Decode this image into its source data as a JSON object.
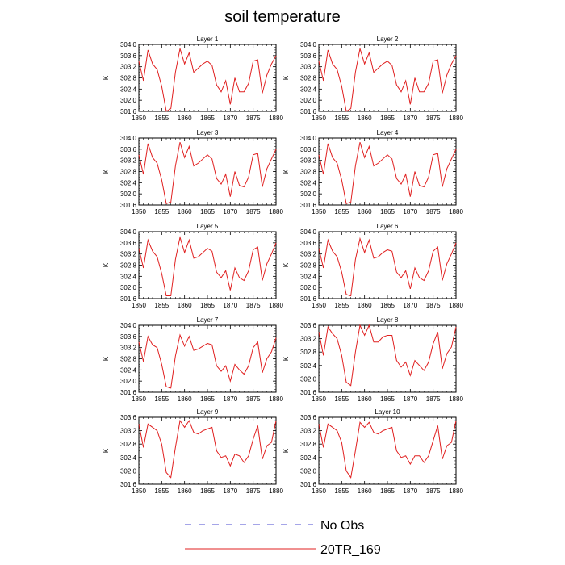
{
  "title": "soil temperature",
  "legend": [
    {
      "label": "No Obs",
      "color": "#4b4bd0",
      "dash": true
    },
    {
      "label": "20TR_169",
      "color": "#e02020",
      "dash": false
    }
  ],
  "chart_data": [
    {
      "type": "line",
      "title": "Layer 1",
      "ylabel": "K",
      "x": [
        1850,
        1851,
        1852,
        1853,
        1854,
        1855,
        1856,
        1857,
        1858,
        1859,
        1860,
        1861,
        1862,
        1863,
        1864,
        1865,
        1866,
        1867,
        1868,
        1869,
        1870,
        1871,
        1872,
        1873,
        1874,
        1875,
        1876,
        1877,
        1878,
        1879,
        1880
      ],
      "xlim": [
        1850,
        1880
      ],
      "xticks": [
        "1850",
        "1855",
        "1860",
        "1865",
        "1870",
        "1875",
        "1880"
      ],
      "ylim": [
        301.6,
        304.0
      ],
      "yticks": [
        "301.6",
        "302.0",
        "302.4",
        "302.8",
        "303.2",
        "303.6",
        "304.0"
      ],
      "series": [
        {
          "color": "#e02020",
          "values": [
            303.4,
            302.7,
            303.8,
            303.3,
            303.1,
            302.5,
            301.6,
            301.7,
            303.0,
            303.85,
            303.3,
            303.7,
            303.0,
            303.15,
            303.3,
            303.4,
            303.25,
            302.55,
            302.3,
            302.7,
            301.85,
            302.8,
            302.3,
            302.3,
            302.6,
            303.4,
            303.45,
            302.25,
            302.9,
            303.3,
            303.6
          ]
        }
      ]
    },
    {
      "type": "line",
      "title": "Layer 2",
      "ylabel": "K",
      "x": [
        1850,
        1851,
        1852,
        1853,
        1854,
        1855,
        1856,
        1857,
        1858,
        1859,
        1860,
        1861,
        1862,
        1863,
        1864,
        1865,
        1866,
        1867,
        1868,
        1869,
        1870,
        1871,
        1872,
        1873,
        1874,
        1875,
        1876,
        1877,
        1878,
        1879,
        1880
      ],
      "xlim": [
        1850,
        1880
      ],
      "xticks": [
        "1850",
        "1855",
        "1860",
        "1865",
        "1870",
        "1875",
        "1880"
      ],
      "ylim": [
        301.6,
        304.0
      ],
      "yticks": [
        "301.6",
        "302.0",
        "302.4",
        "302.8",
        "303.2",
        "303.6",
        "304.0"
      ],
      "series": [
        {
          "color": "#e02020",
          "values": [
            303.4,
            302.7,
            303.8,
            303.3,
            303.1,
            302.5,
            301.6,
            301.7,
            303.0,
            303.85,
            303.3,
            303.7,
            303.0,
            303.15,
            303.3,
            303.4,
            303.25,
            302.55,
            302.3,
            302.7,
            301.85,
            302.8,
            302.3,
            302.3,
            302.6,
            303.4,
            303.45,
            302.25,
            302.9,
            303.3,
            303.6
          ]
        }
      ]
    },
    {
      "type": "line",
      "title": "Layer 3",
      "ylabel": "K",
      "x": [
        1850,
        1851,
        1852,
        1853,
        1854,
        1855,
        1856,
        1857,
        1858,
        1859,
        1860,
        1861,
        1862,
        1863,
        1864,
        1865,
        1866,
        1867,
        1868,
        1869,
        1870,
        1871,
        1872,
        1873,
        1874,
        1875,
        1876,
        1877,
        1878,
        1879,
        1880
      ],
      "xlim": [
        1850,
        1880
      ],
      "xticks": [
        "1850",
        "1855",
        "1860",
        "1865",
        "1870",
        "1875",
        "1880"
      ],
      "ylim": [
        301.6,
        304.0
      ],
      "yticks": [
        "301.6",
        "302.0",
        "302.4",
        "302.8",
        "303.2",
        "303.6",
        "304.0"
      ],
      "series": [
        {
          "color": "#e02020",
          "values": [
            303.4,
            302.7,
            303.8,
            303.3,
            303.1,
            302.5,
            301.65,
            301.7,
            303.0,
            303.85,
            303.3,
            303.7,
            303.0,
            303.1,
            303.25,
            303.4,
            303.25,
            302.55,
            302.35,
            302.7,
            301.9,
            302.8,
            302.3,
            302.25,
            302.6,
            303.4,
            303.45,
            302.25,
            302.9,
            303.25,
            303.6
          ]
        }
      ]
    },
    {
      "type": "line",
      "title": "Layer 4",
      "ylabel": "K",
      "x": [
        1850,
        1851,
        1852,
        1853,
        1854,
        1855,
        1856,
        1857,
        1858,
        1859,
        1860,
        1861,
        1862,
        1863,
        1864,
        1865,
        1866,
        1867,
        1868,
        1869,
        1870,
        1871,
        1872,
        1873,
        1874,
        1875,
        1876,
        1877,
        1878,
        1879,
        1880
      ],
      "xlim": [
        1850,
        1880
      ],
      "xticks": [
        "1850",
        "1855",
        "1860",
        "1865",
        "1870",
        "1875",
        "1880"
      ],
      "ylim": [
        301.6,
        304.0
      ],
      "yticks": [
        "301.6",
        "302.0",
        "302.4",
        "302.8",
        "303.2",
        "303.6",
        "304.0"
      ],
      "series": [
        {
          "color": "#e02020",
          "values": [
            303.4,
            302.7,
            303.8,
            303.3,
            303.1,
            302.5,
            301.65,
            301.7,
            303.0,
            303.85,
            303.3,
            303.7,
            303.0,
            303.1,
            303.25,
            303.4,
            303.25,
            302.55,
            302.35,
            302.7,
            301.9,
            302.8,
            302.3,
            302.25,
            302.6,
            303.4,
            303.45,
            302.25,
            302.9,
            303.25,
            303.6
          ]
        }
      ]
    },
    {
      "type": "line",
      "title": "Layer 5",
      "ylabel": "K",
      "x": [
        1850,
        1851,
        1852,
        1853,
        1854,
        1855,
        1856,
        1857,
        1858,
        1859,
        1860,
        1861,
        1862,
        1863,
        1864,
        1865,
        1866,
        1867,
        1868,
        1869,
        1870,
        1871,
        1872,
        1873,
        1874,
        1875,
        1876,
        1877,
        1878,
        1879,
        1880
      ],
      "xlim": [
        1850,
        1880
      ],
      "xticks": [
        "1850",
        "1855",
        "1860",
        "1865",
        "1870",
        "1875",
        "1880"
      ],
      "ylim": [
        301.6,
        304.0
      ],
      "yticks": [
        "301.6",
        "302.0",
        "302.4",
        "302.8",
        "303.2",
        "303.6",
        "304.0"
      ],
      "series": [
        {
          "color": "#e02020",
          "values": [
            303.4,
            302.7,
            303.7,
            303.3,
            303.1,
            302.5,
            301.7,
            301.7,
            303.0,
            303.8,
            303.25,
            303.7,
            303.05,
            303.1,
            303.25,
            303.4,
            303.3,
            302.55,
            302.35,
            302.6,
            301.9,
            302.7,
            302.35,
            302.25,
            302.6,
            303.35,
            303.45,
            302.25,
            302.85,
            303.2,
            303.6
          ]
        }
      ]
    },
    {
      "type": "line",
      "title": "Layer 6",
      "ylabel": "K",
      "x": [
        1850,
        1851,
        1852,
        1853,
        1854,
        1855,
        1856,
        1857,
        1858,
        1859,
        1860,
        1861,
        1862,
        1863,
        1864,
        1865,
        1866,
        1867,
        1868,
        1869,
        1870,
        1871,
        1872,
        1873,
        1874,
        1875,
        1876,
        1877,
        1878,
        1879,
        1880
      ],
      "xlim": [
        1850,
        1880
      ],
      "xticks": [
        "1850",
        "1855",
        "1860",
        "1865",
        "1870",
        "1875",
        "1880"
      ],
      "ylim": [
        301.6,
        304.0
      ],
      "yticks": [
        "301.6",
        "302.0",
        "302.4",
        "302.8",
        "303.2",
        "303.6",
        "304.0"
      ],
      "series": [
        {
          "color": "#e02020",
          "values": [
            303.4,
            302.7,
            303.7,
            303.3,
            303.1,
            302.55,
            301.75,
            301.7,
            303.0,
            303.75,
            303.25,
            303.7,
            303.05,
            303.1,
            303.25,
            303.35,
            303.3,
            302.55,
            302.35,
            302.6,
            301.95,
            302.7,
            302.35,
            302.25,
            302.6,
            303.3,
            303.45,
            302.25,
            302.85,
            303.2,
            303.6
          ]
        }
      ]
    },
    {
      "type": "line",
      "title": "Layer 7",
      "ylabel": "K",
      "x": [
        1850,
        1851,
        1852,
        1853,
        1854,
        1855,
        1856,
        1857,
        1858,
        1859,
        1860,
        1861,
        1862,
        1863,
        1864,
        1865,
        1866,
        1867,
        1868,
        1869,
        1870,
        1871,
        1872,
        1873,
        1874,
        1875,
        1876,
        1877,
        1878,
        1879,
        1880
      ],
      "xlim": [
        1850,
        1880
      ],
      "xticks": [
        "1850",
        "1855",
        "1860",
        "1865",
        "1870",
        "1875",
        "1880"
      ],
      "ylim": [
        301.6,
        304.0
      ],
      "yticks": [
        "301.6",
        "302.0",
        "302.4",
        "302.8",
        "303.2",
        "303.6",
        "304.0"
      ],
      "series": [
        {
          "color": "#e02020",
          "values": [
            303.4,
            302.7,
            303.6,
            303.3,
            303.2,
            302.6,
            301.8,
            301.75,
            302.9,
            303.65,
            303.25,
            303.6,
            303.1,
            303.15,
            303.25,
            303.35,
            303.3,
            302.55,
            302.35,
            302.55,
            302.0,
            302.6,
            302.4,
            302.25,
            302.55,
            303.2,
            303.4,
            302.3,
            302.8,
            303.05,
            303.55
          ]
        }
      ]
    },
    {
      "type": "line",
      "title": "Layer 8",
      "ylabel": "K",
      "x": [
        1850,
        1851,
        1852,
        1853,
        1854,
        1855,
        1856,
        1857,
        1858,
        1859,
        1860,
        1861,
        1862,
        1863,
        1864,
        1865,
        1866,
        1867,
        1868,
        1869,
        1870,
        1871,
        1872,
        1873,
        1874,
        1875,
        1876,
        1877,
        1878,
        1879,
        1880
      ],
      "xlim": [
        1850,
        1880
      ],
      "xticks": [
        "1850",
        "1855",
        "1860",
        "1865",
        "1870",
        "1875",
        "1880"
      ],
      "ylim": [
        301.6,
        303.6
      ],
      "yticks": [
        "301.6",
        "302.0",
        "302.4",
        "302.8",
        "303.2",
        "303.6"
      ],
      "series": [
        {
          "color": "#e02020",
          "values": [
            303.4,
            302.7,
            303.55,
            303.35,
            303.2,
            302.7,
            301.9,
            301.8,
            302.8,
            303.6,
            303.3,
            303.6,
            303.1,
            303.1,
            303.25,
            303.3,
            303.3,
            302.55,
            302.35,
            302.5,
            302.1,
            302.55,
            302.4,
            302.25,
            302.5,
            303.05,
            303.4,
            302.3,
            302.75,
            302.95,
            303.55
          ]
        }
      ]
    },
    {
      "type": "line",
      "title": "Layer 9",
      "ylabel": "K",
      "x": [
        1850,
        1851,
        1852,
        1853,
        1854,
        1855,
        1856,
        1857,
        1858,
        1859,
        1860,
        1861,
        1862,
        1863,
        1864,
        1865,
        1866,
        1867,
        1868,
        1869,
        1870,
        1871,
        1872,
        1873,
        1874,
        1875,
        1876,
        1877,
        1878,
        1879,
        1880
      ],
      "xlim": [
        1850,
        1880
      ],
      "xticks": [
        "1850",
        "1855",
        "1860",
        "1865",
        "1870",
        "1875",
        "1880"
      ],
      "ylim": [
        301.6,
        303.6
      ],
      "yticks": [
        "301.6",
        "302.0",
        "302.4",
        "302.8",
        "303.2",
        "303.6"
      ],
      "series": [
        {
          "color": "#e02020",
          "values": [
            303.4,
            302.7,
            303.4,
            303.3,
            303.2,
            302.8,
            301.95,
            301.8,
            302.7,
            303.5,
            303.3,
            303.5,
            303.15,
            303.1,
            303.2,
            303.25,
            303.3,
            302.6,
            302.4,
            302.45,
            302.15,
            302.5,
            302.45,
            302.25,
            302.45,
            302.95,
            303.35,
            302.35,
            302.75,
            302.85,
            303.5
          ]
        }
      ]
    },
    {
      "type": "line",
      "title": "Layer 10",
      "ylabel": "K",
      "x": [
        1850,
        1851,
        1852,
        1853,
        1854,
        1855,
        1856,
        1857,
        1858,
        1859,
        1860,
        1861,
        1862,
        1863,
        1864,
        1865,
        1866,
        1867,
        1868,
        1869,
        1870,
        1871,
        1872,
        1873,
        1874,
        1875,
        1876,
        1877,
        1878,
        1879,
        1880
      ],
      "xlim": [
        1850,
        1880
      ],
      "xticks": [
        "1850",
        "1855",
        "1860",
        "1865",
        "1870",
        "1875",
        "1880"
      ],
      "ylim": [
        301.6,
        303.6
      ],
      "yticks": [
        "301.6",
        "302.0",
        "302.4",
        "302.8",
        "303.2",
        "303.6"
      ],
      "series": [
        {
          "color": "#e02020",
          "values": [
            303.4,
            302.7,
            303.4,
            303.3,
            303.2,
            302.85,
            302.0,
            301.8,
            302.6,
            303.45,
            303.3,
            303.45,
            303.15,
            303.1,
            303.2,
            303.25,
            303.3,
            302.6,
            302.4,
            302.45,
            302.2,
            302.45,
            302.45,
            302.25,
            302.45,
            302.9,
            303.35,
            302.35,
            302.75,
            302.85,
            303.5
          ]
        }
      ]
    }
  ]
}
